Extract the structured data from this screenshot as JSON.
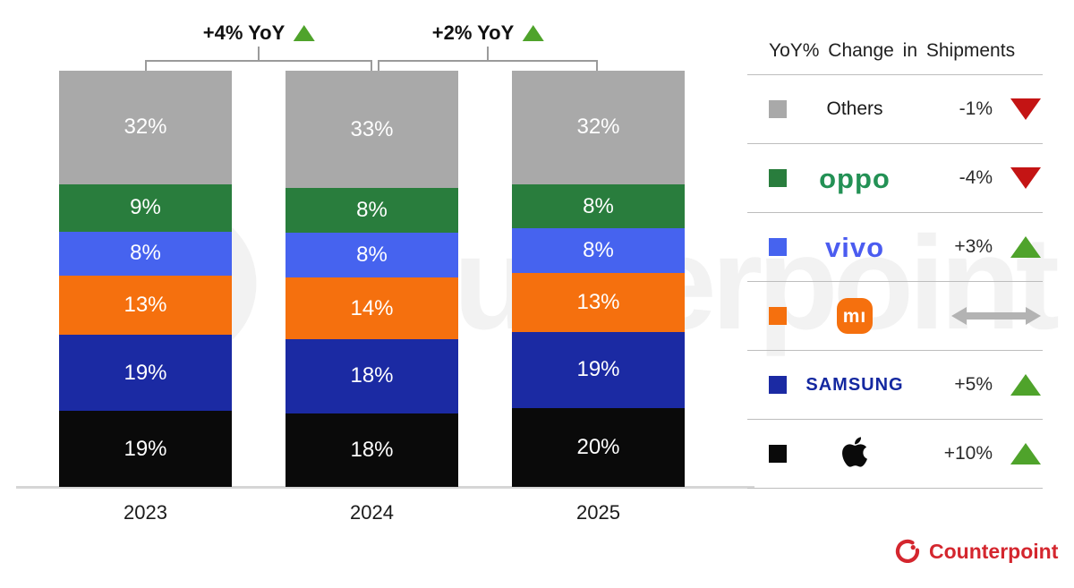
{
  "watermark": {
    "text": "Counterpoint"
  },
  "annotations": [
    {
      "text": "+4% YoY",
      "direction": "up",
      "between": [
        "2023",
        "2024"
      ]
    },
    {
      "text": "+2% YoY",
      "direction": "up",
      "between": [
        "2024",
        "2025"
      ]
    }
  ],
  "chart_data": {
    "type": "bar",
    "subtype": "stacked-100-percent",
    "title": "",
    "categories": [
      "2023",
      "2024",
      "2025"
    ],
    "value_suffix": "%",
    "ylim": [
      0,
      100
    ],
    "grid": false,
    "legend_position": "right",
    "series": [
      {
        "name": "Others",
        "color": "#a9a9a9",
        "values": [
          32,
          33,
          32
        ]
      },
      {
        "name": "OPPO",
        "color": "#297d3d",
        "values": [
          9,
          8,
          8
        ]
      },
      {
        "name": "vivo",
        "color": "#4663ef",
        "values": [
          8,
          8,
          8
        ]
      },
      {
        "name": "Xiaomi",
        "color": "#f5700e",
        "values": [
          13,
          14,
          13
        ]
      },
      {
        "name": "Samsung",
        "color": "#1b2aa3",
        "values": [
          19,
          18,
          19
        ]
      },
      {
        "name": "Apple",
        "color": "#0a0a0a",
        "values": [
          19,
          18,
          20
        ]
      }
    ]
  },
  "legend": {
    "title": "YoY% Change in Shipments",
    "rows": [
      {
        "brand": "Others",
        "change": "-1%",
        "direction": "down"
      },
      {
        "brand": "oppo",
        "change": "-4%",
        "direction": "down"
      },
      {
        "brand": "vivo",
        "change": "+3%",
        "direction": "up"
      },
      {
        "brand": "mı",
        "change": "",
        "direction": "flat"
      },
      {
        "brand": "SAMSUNG",
        "change": "+5%",
        "direction": "up"
      },
      {
        "brand": "Apple",
        "change": "+10%",
        "direction": "up"
      }
    ]
  },
  "footer": {
    "brand": "Counterpoint"
  },
  "palette": {
    "up_green": "#4fa32b",
    "down_red": "#c41414",
    "flat_gray": "#b3b3b3",
    "counterpoint_red": "#d4262e",
    "oppo_green": "#239155",
    "vivo_blue": "#4b5cf0",
    "samsung_blue": "#1428a0",
    "xiaomi_orange": "#f5700e",
    "axis_gray": "#d6d6d6",
    "bracket_gray": "#9b9b9b"
  }
}
